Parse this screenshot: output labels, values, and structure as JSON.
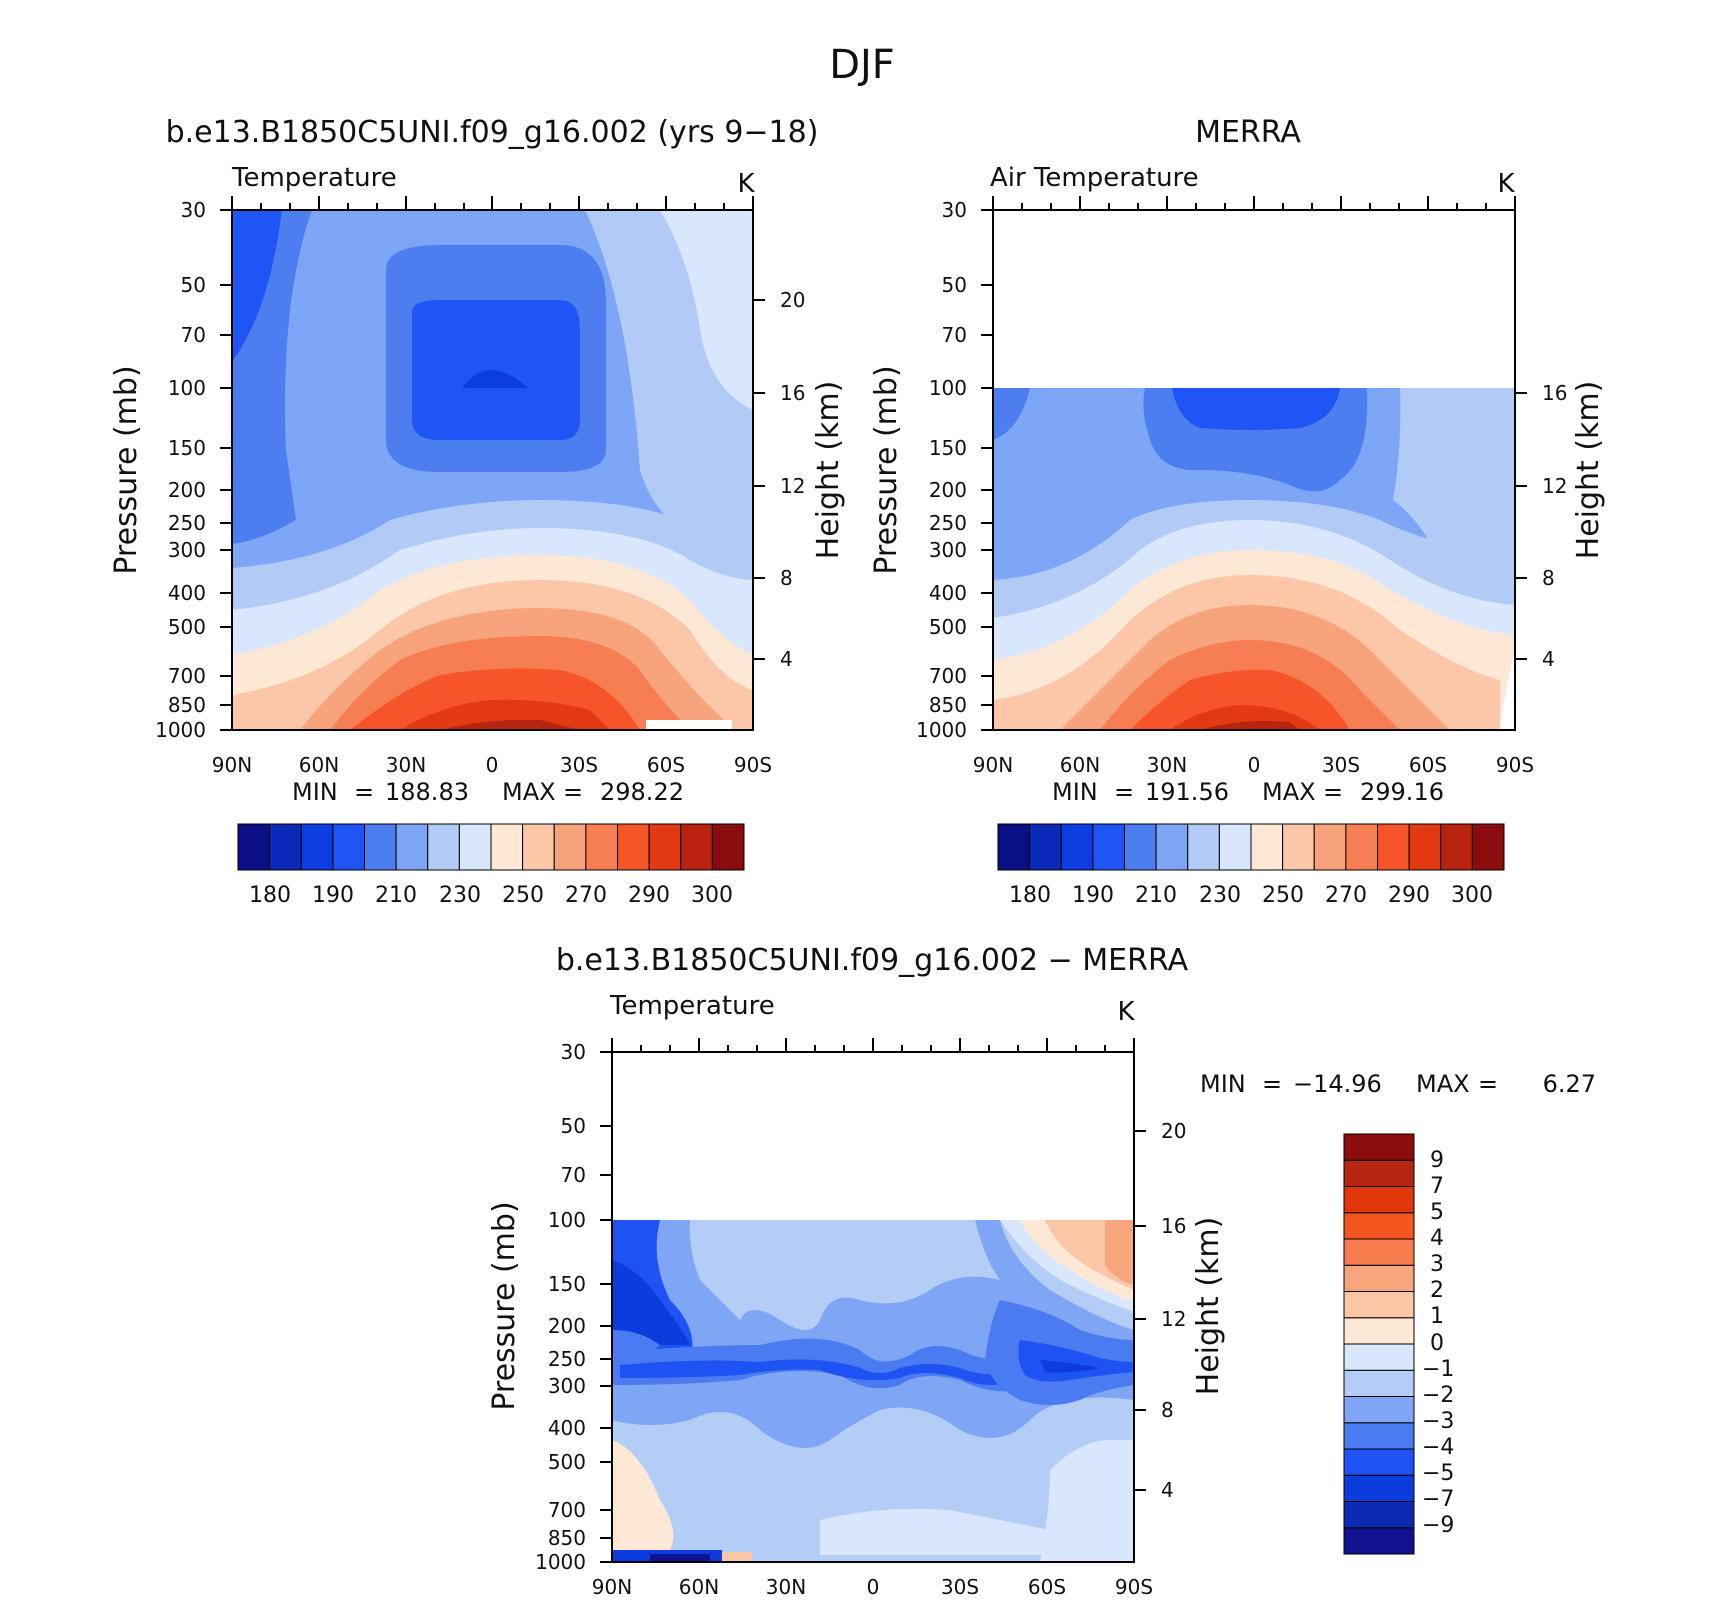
{
  "page_title": "DJF",
  "palettes": {
    "temperature": [
      "#0b0f86",
      "#0a2ab8",
      "#0c3de0",
      "#1f55f5",
      "#4c7ef0",
      "#7ea6f6",
      "#b2cbf6",
      "#d8e7fb",
      "#fde8d6",
      "#fbc7a8",
      "#f7a47c",
      "#f77e52",
      "#f6552a",
      "#e23a12",
      "#b82410",
      "#8a0c0c"
    ],
    "difference": [
      "#11128f",
      "#0b2ab2",
      "#0d3cdc",
      "#1e52f3",
      "#4b7bf0",
      "#7fa6f5",
      "#b3cdf7",
      "#d8e7fb",
      "#fde8d6",
      "#fbc6a6",
      "#f7a57c",
      "#f77c4d",
      "#f2561f",
      "#e2360b",
      "#b62610",
      "#8c0b0b"
    ]
  },
  "chart_data": [
    {
      "type": "contour",
      "panel_title": "b.e13.B1850C5UNI.f09_g16.002 (yrs 9−18)",
      "variable_label": "Temperature",
      "units_label": "K",
      "xlabel": "",
      "ylabel": "Pressure (mb)",
      "ylabel_right": "Height (km)",
      "x_ticks": [
        "90N",
        "60N",
        "30N",
        "0",
        "30S",
        "60S",
        "90S"
      ],
      "y_ticks": [
        "30",
        "50",
        "70",
        "100",
        "150",
        "200",
        "250",
        "300",
        "400",
        "500",
        "700",
        "850",
        "1000"
      ],
      "y_ticks_right": [
        "20",
        "16",
        "12",
        "8",
        "4"
      ],
      "stats": {
        "min_label": "MIN",
        "min": "188.83",
        "max_label": "MAX",
        "max": "298.22"
      },
      "colorbar": {
        "orientation": "horizontal",
        "labels": [
          "180",
          "190",
          "210",
          "230",
          "250",
          "270",
          "290",
          "300"
        ],
        "n_bins": 16
      },
      "data_top_pressure_mb": 30,
      "ylim": [
        1000,
        30
      ]
    },
    {
      "type": "contour",
      "panel_title": "MERRA",
      "variable_label": "Air Temperature",
      "units_label": "K",
      "xlabel": "",
      "ylabel": "Pressure (mb)",
      "ylabel_right": "Height (km)",
      "x_ticks": [
        "90N",
        "60N",
        "30N",
        "0",
        "30S",
        "60S",
        "90S"
      ],
      "y_ticks": [
        "30",
        "50",
        "70",
        "100",
        "150",
        "200",
        "250",
        "300",
        "400",
        "500",
        "700",
        "850",
        "1000"
      ],
      "y_ticks_right": [
        "16",
        "12",
        "8",
        "4"
      ],
      "stats": {
        "min_label": "MIN",
        "min": "191.56",
        "max_label": "MAX",
        "max": "299.16"
      },
      "colorbar": {
        "orientation": "horizontal",
        "labels": [
          "180",
          "190",
          "210",
          "230",
          "250",
          "270",
          "290",
          "300"
        ],
        "n_bins": 16
      },
      "data_top_pressure_mb": 100,
      "ylim": [
        1000,
        30
      ]
    },
    {
      "type": "contour",
      "panel_title": "b.e13.B1850C5UNI.f09_g16.002 − MERRA",
      "variable_label": "Temperature",
      "units_label": "K",
      "xlabel": "",
      "ylabel": "Pressure (mb)",
      "ylabel_right": "Height (km)",
      "x_ticks": [
        "90N",
        "60N",
        "30N",
        "0",
        "30S",
        "60S",
        "90S"
      ],
      "y_ticks": [
        "30",
        "50",
        "70",
        "100",
        "150",
        "200",
        "250",
        "300",
        "400",
        "500",
        "700",
        "850",
        "1000"
      ],
      "y_ticks_right": [
        "20",
        "16",
        "12",
        "8",
        "4"
      ],
      "stats": {
        "min_label": "MIN",
        "min": "−14.96",
        "max_label": "MAX",
        "max": "6.27"
      },
      "colorbar": {
        "orientation": "vertical",
        "labels": [
          "9",
          "7",
          "5",
          "4",
          "3",
          "2",
          "1",
          "0",
          "−1",
          "−2",
          "−3",
          "−4",
          "−5",
          "−7",
          "−9"
        ],
        "n_bins": 16
      },
      "data_top_pressure_mb": 100,
      "ylim": [
        1000,
        30
      ]
    }
  ]
}
